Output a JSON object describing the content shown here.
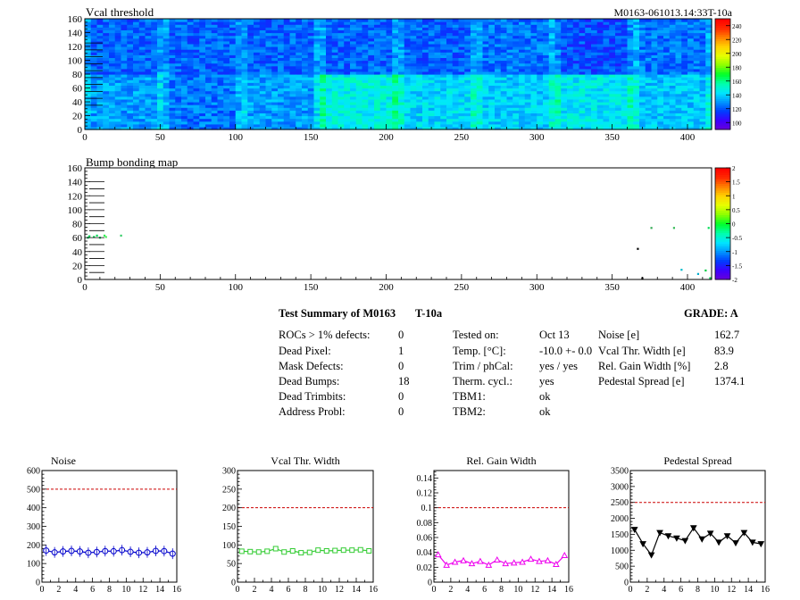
{
  "vcal_map": {
    "title": "Vcal threshold",
    "module_id": "M0163-061013.14:33T-10a",
    "x_ticks": [
      "0",
      "50",
      "100",
      "150",
      "200",
      "250",
      "300",
      "350",
      "400"
    ],
    "y_ticks": [
      "0",
      "20",
      "40",
      "60",
      "80",
      "100",
      "120",
      "140",
      "160"
    ],
    "palette_ticks": [
      "100",
      "120",
      "140",
      "160",
      "180",
      "200",
      "220",
      "240"
    ]
  },
  "bump_map": {
    "title": "Bump bonding map",
    "x_ticks": [
      "0",
      "50",
      "100",
      "150",
      "200",
      "250",
      "300",
      "350",
      "400"
    ],
    "y_ticks": [
      "0",
      "20",
      "40",
      "60",
      "80",
      "100",
      "120",
      "140",
      "160"
    ],
    "palette_ticks": [
      "-2",
      "-1.5",
      "-1",
      "-0.5",
      "0",
      "0.5",
      "1",
      "1.5",
      "2"
    ]
  },
  "summary": {
    "title": "Test Summary of M0163",
    "test": "T-10a",
    "grade": "GRADE:  A",
    "defects": [
      {
        "label": "ROCs > 1% defects:",
        "value": "0"
      },
      {
        "label": "Dead Pixel:",
        "value": "1"
      },
      {
        "label": "Mask Defects:",
        "value": "0"
      },
      {
        "label": "Dead Bumps:",
        "value": "18"
      },
      {
        "label": "Dead Trimbits:",
        "value": "0"
      },
      {
        "label": "Address Probl:",
        "value": "0"
      }
    ],
    "conditions": [
      {
        "label": "Tested on:",
        "value": "Oct 13"
      },
      {
        "label": "Temp. [°C]:",
        "value": "-10.0 +- 0.0"
      },
      {
        "label": "Trim / phCal:",
        "value": "yes / yes"
      },
      {
        "label": "Therm. cycl.:",
        "value": "yes"
      },
      {
        "label": "TBM1:",
        "value": "ok"
      },
      {
        "label": "TBM2:",
        "value": "ok"
      }
    ],
    "results": [
      {
        "label": "Noise [e]",
        "value": "162.7"
      },
      {
        "label": "Vcal Thr. Width [e]",
        "value": "83.9"
      },
      {
        "label": "Rel. Gain Width [%]",
        "value": "2.8"
      },
      {
        "label": "Pedestal Spread [e]",
        "value": "1374.1"
      }
    ]
  },
  "chart_data": [
    {
      "type": "heatmap",
      "title": "Vcal threshold",
      "xlim": [
        0,
        416
      ],
      "ylim": [
        0,
        160
      ],
      "zlim": [
        90,
        250
      ],
      "x_ticks": [
        0,
        50,
        100,
        150,
        200,
        250,
        300,
        350,
        400
      ],
      "y_ticks": [
        0,
        20,
        40,
        60,
        80,
        100,
        120,
        140,
        160
      ],
      "z_ticks": [
        100,
        120,
        140,
        160,
        180,
        200,
        220,
        240
      ]
    },
    {
      "type": "heatmap",
      "title": "Bump bonding map",
      "xlim": [
        0,
        416
      ],
      "ylim": [
        0,
        160
      ],
      "zlim": [
        -2,
        2
      ],
      "x_ticks": [
        0,
        50,
        100,
        150,
        200,
        250,
        300,
        350,
        400
      ],
      "y_ticks": [
        0,
        20,
        40,
        60,
        80,
        100,
        120,
        140,
        160
      ],
      "z_ticks": [
        -2,
        -1.5,
        -1,
        -0.5,
        0,
        0.5,
        1,
        1.5,
        2
      ]
    },
    {
      "type": "line",
      "title": "Noise",
      "color": "#0000cc",
      "marker": "circle",
      "xlim": [
        0,
        16
      ],
      "ylim": [
        0,
        600
      ],
      "threshold": 500,
      "x": [
        0.5,
        1.5,
        2.5,
        3.5,
        4.5,
        5.5,
        6.5,
        7.5,
        8.5,
        9.5,
        10.5,
        11.5,
        12.5,
        13.5,
        14.5,
        15.5
      ],
      "y": [
        170,
        160,
        165,
        168,
        165,
        158,
        162,
        167,
        166,
        172,
        163,
        158,
        160,
        168,
        167,
        153
      ],
      "x_ticks": [
        0,
        2,
        4,
        6,
        8,
        10,
        12,
        14,
        16
      ],
      "y_ticks": [
        0,
        100,
        200,
        300,
        400,
        500,
        600
      ]
    },
    {
      "type": "line",
      "title": "Vcal Thr. Width",
      "color": "#33cc33",
      "marker": "square",
      "xlim": [
        0,
        16
      ],
      "ylim": [
        0,
        300
      ],
      "threshold": 200,
      "x": [
        0.5,
        1.5,
        2.5,
        3.5,
        4.5,
        5.5,
        6.5,
        7.5,
        8.5,
        9.5,
        10.5,
        11.5,
        12.5,
        13.5,
        14.5,
        15.5
      ],
      "y": [
        83,
        82,
        81,
        83,
        90,
        81,
        84,
        79,
        80,
        86,
        84,
        85,
        86,
        86,
        87,
        84
      ],
      "x_ticks": [
        0,
        2,
        4,
        6,
        8,
        10,
        12,
        14,
        16
      ],
      "y_ticks": [
        0,
        50,
        100,
        150,
        200,
        250,
        300
      ]
    },
    {
      "type": "line",
      "title": "Rel. Gain Width",
      "color": "#ee00ee",
      "marker": "triangle",
      "xlim": [
        0,
        16
      ],
      "ylim": [
        0,
        0.15
      ],
      "threshold": 0.1,
      "x": [
        0.5,
        1.5,
        2.5,
        3.5,
        4.5,
        5.5,
        6.5,
        7.5,
        8.5,
        9.5,
        10.5,
        11.5,
        12.5,
        13.5,
        14.5,
        15.5
      ],
      "y": [
        0.037,
        0.023,
        0.027,
        0.029,
        0.025,
        0.028,
        0.023,
        0.03,
        0.025,
        0.026,
        0.027,
        0.031,
        0.028,
        0.029,
        0.024,
        0.036
      ],
      "x_ticks": [
        0,
        2,
        4,
        6,
        8,
        10,
        12,
        14,
        16
      ],
      "y_ticks": [
        0,
        0.02,
        0.04,
        0.06,
        0.08,
        0.1,
        0.12,
        0.14
      ]
    },
    {
      "type": "line",
      "title": "Pedestal Spread",
      "color": "#000000",
      "marker": "triangle-down",
      "xlim": [
        0,
        16
      ],
      "ylim": [
        0,
        3500
      ],
      "threshold": 2500,
      "x": [
        0.5,
        1.5,
        2.5,
        3.5,
        4.5,
        5.5,
        6.5,
        7.5,
        8.5,
        9.5,
        10.5,
        11.5,
        12.5,
        13.5,
        14.5,
        15.5
      ],
      "y": [
        1650,
        1200,
        850,
        1550,
        1450,
        1380,
        1300,
        1700,
        1350,
        1530,
        1250,
        1450,
        1230,
        1550,
        1250,
        1200
      ],
      "x_ticks": [
        0,
        2,
        4,
        6,
        8,
        10,
        12,
        14,
        16
      ],
      "y_ticks": [
        0,
        500,
        1000,
        1500,
        2000,
        2500,
        3000,
        3500
      ]
    }
  ]
}
